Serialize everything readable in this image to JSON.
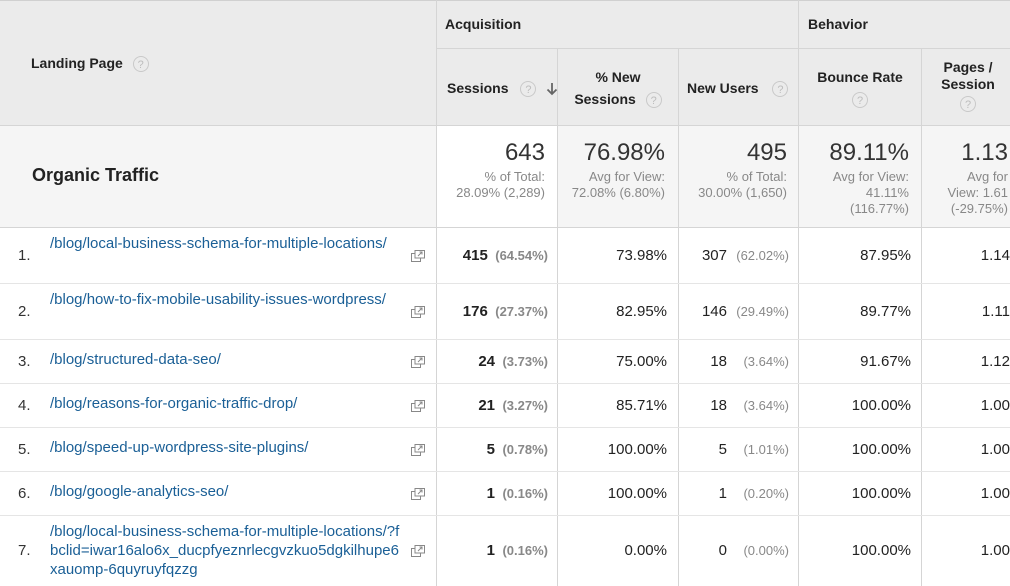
{
  "header": {
    "landing_page": "Landing Page",
    "acquisition": "Acquisition",
    "behavior": "Behavior",
    "sessions": "Sessions",
    "pct_new_sessions_line1": "% New",
    "pct_new_sessions_line2": "Sessions",
    "new_users": "New Users",
    "bounce_rate": "Bounce Rate",
    "pages_session_line1": "Pages /",
    "pages_session_line2": "Session",
    "help_glyph": "?",
    "sort_icon": "sort-desc-arrow-icon"
  },
  "summary": {
    "label": "Organic Traffic",
    "sessions": {
      "value": "643",
      "sub1": "% of Total:",
      "sub2": "28.09% (2,289)"
    },
    "pct_new": {
      "value": "76.98%",
      "sub1": "Avg for View:",
      "sub2": "72.08% (6.80%)"
    },
    "new_users": {
      "value": "495",
      "sub1": "% of Total:",
      "sub2": "30.00% (1,650)"
    },
    "bounce": {
      "value": "89.11%",
      "sub1": "Avg for View:",
      "sub2": "41.11%",
      "sub3": "(116.77%)"
    },
    "pages": {
      "value": "1.13",
      "sub1": "Avg for",
      "sub2": "View: 1.61",
      "sub3": "(-29.75%)"
    }
  },
  "rows": [
    {
      "rank": "1.",
      "page": "/blog/local-business-schema-for-multiple-locations/",
      "sessions": "415",
      "sessions_pct": "(64.54%)",
      "pct_new": "73.98%",
      "new_users": "307",
      "new_users_pct": "(62.02%)",
      "bounce": "87.95%",
      "pages": "1.14"
    },
    {
      "rank": "2.",
      "page": "/blog/how-to-fix-mobile-usability-issues-wordpress/",
      "sessions": "176",
      "sessions_pct": "(27.37%)",
      "pct_new": "82.95%",
      "new_users": "146",
      "new_users_pct": "(29.49%)",
      "bounce": "89.77%",
      "pages": "1.11"
    },
    {
      "rank": "3.",
      "page": "/blog/structured-data-seo/",
      "sessions": "24",
      "sessions_pct": "(3.73%)",
      "pct_new": "75.00%",
      "new_users": "18",
      "new_users_pct": "(3.64%)",
      "bounce": "91.67%",
      "pages": "1.12"
    },
    {
      "rank": "4.",
      "page": "/blog/reasons-for-organic-traffic-drop/",
      "sessions": "21",
      "sessions_pct": "(3.27%)",
      "pct_new": "85.71%",
      "new_users": "18",
      "new_users_pct": "(3.64%)",
      "bounce": "100.00%",
      "pages": "1.00"
    },
    {
      "rank": "5.",
      "page": "/blog/speed-up-wordpress-site-plugins/",
      "sessions": "5",
      "sessions_pct": "(0.78%)",
      "pct_new": "100.00%",
      "new_users": "5",
      "new_users_pct": "(1.01%)",
      "bounce": "100.00%",
      "pages": "1.00"
    },
    {
      "rank": "6.",
      "page": "/blog/google-analytics-seo/",
      "sessions": "1",
      "sessions_pct": "(0.16%)",
      "pct_new": "100.00%",
      "new_users": "1",
      "new_users_pct": "(0.20%)",
      "bounce": "100.00%",
      "pages": "1.00"
    },
    {
      "rank": "7.",
      "page": "/blog/local-business-schema-for-multiple-locations/?fbclid=iwar16alo6x_ducpfyeznrlecgvzkuo5dgkilhupe6xauomp-6quyruyfqzzg",
      "sessions": "1",
      "sessions_pct": "(0.16%)",
      "pct_new": "0.00%",
      "new_users": "0",
      "new_users_pct": "(0.00%)",
      "bounce": "100.00%",
      "pages": "1.00"
    }
  ],
  "row_icon": "open-in-new-window-icon",
  "colors": {
    "header_bg": "#ebebeb",
    "summary_bg": "#f5f5f5",
    "link": "#1a5f96"
  }
}
